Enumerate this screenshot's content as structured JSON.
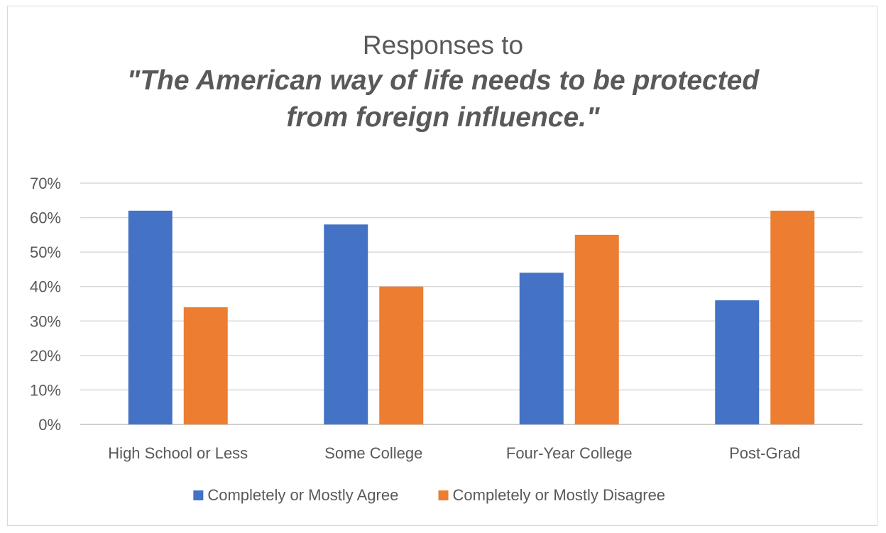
{
  "chart_data": {
    "type": "bar",
    "title": "Responses to",
    "subtitle_lines": [
      "\"The American way of life needs to be protected",
      "from foreign influence.\""
    ],
    "categories": [
      "High School or Less",
      "Some College",
      "Four-Year College",
      "Post-Grad"
    ],
    "series": [
      {
        "name": "Completely or Mostly Agree",
        "color": "#4472c4",
        "values": [
          62,
          58,
          44,
          36
        ]
      },
      {
        "name": "Completely or Mostly Disagree",
        "color": "#ed7d31",
        "values": [
          34,
          40,
          55,
          62
        ]
      }
    ],
    "yticks": [
      "0%",
      "10%",
      "20%",
      "30%",
      "40%",
      "50%",
      "60%",
      "70%"
    ],
    "ylim": [
      0,
      70
    ],
    "grid": true,
    "legend_position": "bottom"
  }
}
